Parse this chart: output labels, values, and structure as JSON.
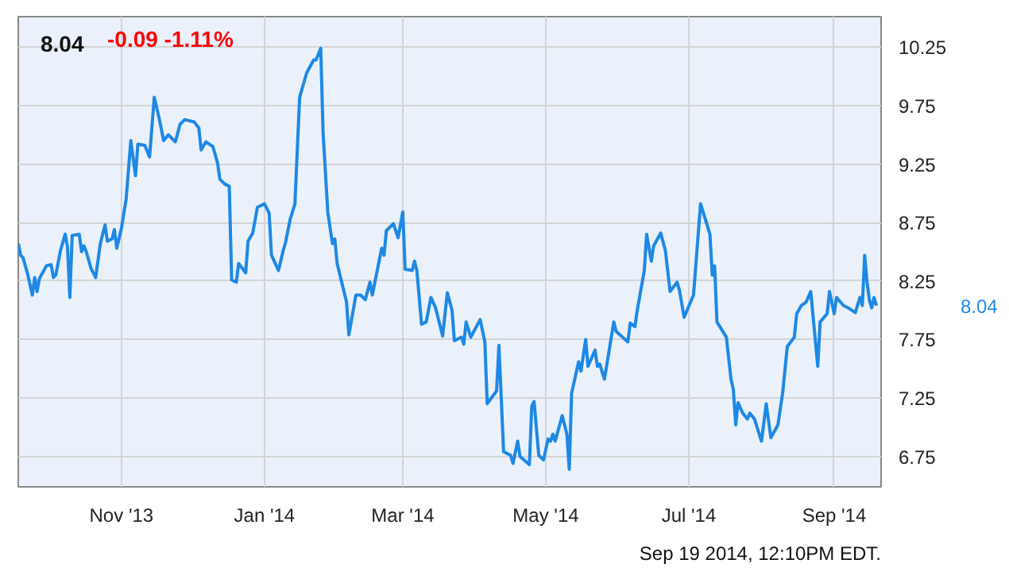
{
  "chart_data": {
    "type": "line",
    "title": "8.04",
    "subtitle": "-0.09  -1.11%",
    "x": [
      "2013-09-18",
      "2013-09-19",
      "2013-09-20",
      "2013-09-22",
      "2013-09-24",
      "2013-09-25",
      "2013-09-26",
      "2013-09-27",
      "2013-09-30",
      "2013-10-02",
      "2013-10-03",
      "2013-10-04",
      "2013-10-06",
      "2013-10-08",
      "2013-10-09",
      "2013-10-10",
      "2013-10-11",
      "2013-10-14",
      "2013-10-15",
      "2013-10-16",
      "2013-10-17",
      "2013-10-19",
      "2013-10-21",
      "2013-10-23",
      "2013-10-25",
      "2013-10-26",
      "2013-10-28",
      "2013-10-29",
      "2013-10-30",
      "2013-11-01",
      "2013-11-03",
      "2013-11-05",
      "2013-11-07",
      "2013-11-08",
      "2013-11-11",
      "2013-11-13",
      "2013-11-15",
      "2013-11-17",
      "2013-11-19",
      "2013-11-21",
      "2013-11-24",
      "2013-11-26",
      "2013-11-28",
      "2013-12-02",
      "2013-12-04",
      "2013-12-05",
      "2013-12-07",
      "2013-12-10",
      "2013-12-12",
      "2013-12-13",
      "2013-12-15",
      "2013-12-17",
      "2013-12-18",
      "2013-12-20",
      "2013-12-21",
      "2013-12-24",
      "2013-12-25",
      "2013-12-27",
      "2013-12-29",
      "2014-01-01",
      "2014-01-03",
      "2014-01-04",
      "2014-01-07",
      "2014-01-09",
      "2014-01-10",
      "2014-01-12",
      "2014-01-14",
      "2014-01-16",
      "2014-01-19",
      "2014-01-22",
      "2014-01-23",
      "2014-01-25",
      "2014-01-26",
      "2014-01-28",
      "2014-01-30",
      "2014-01-31",
      "2014-02-01",
      "2014-02-05",
      "2014-02-06",
      "2014-02-09",
      "2014-02-11",
      "2014-02-13",
      "2014-02-15",
      "2014-02-16",
      "2014-02-20",
      "2014-02-21",
      "2014-02-22",
      "2014-02-25",
      "2014-02-27",
      "2014-03-01",
      "2014-03-02",
      "2014-03-05",
      "2014-03-06",
      "2014-03-07",
      "2014-03-09",
      "2014-03-11",
      "2014-03-13",
      "2014-03-15",
      "2014-03-18",
      "2014-03-20",
      "2014-03-22",
      "2014-03-23",
      "2014-03-26",
      "2014-03-27",
      "2014-03-28",
      "2014-03-30",
      "2014-04-03",
      "2014-04-05",
      "2014-04-06",
      "2014-04-10",
      "2014-04-11",
      "2014-04-13",
      "2014-04-16",
      "2014-04-17",
      "2014-04-19",
      "2014-04-20",
      "2014-04-24",
      "2014-04-25",
      "2014-04-26",
      "2014-04-28",
      "2014-04-30",
      "2014-05-02",
      "2014-05-03",
      "2014-05-04",
      "2014-05-05",
      "2014-05-08",
      "2014-05-10",
      "2014-05-11",
      "2014-05-12",
      "2014-05-15",
      "2014-05-16",
      "2014-05-18",
      "2014-05-19",
      "2014-05-22",
      "2014-05-23",
      "2014-05-24",
      "2014-05-26",
      "2014-05-30",
      "2014-05-31",
      "2014-06-05",
      "2014-06-06",
      "2014-06-08",
      "2014-06-09",
      "2014-06-12",
      "2014-06-13",
      "2014-06-15",
      "2014-06-16",
      "2014-06-19",
      "2014-06-21",
      "2014-06-23",
      "2014-06-26",
      "2014-06-27",
      "2014-06-29",
      "2014-07-03",
      "2014-07-06",
      "2014-07-10",
      "2014-07-11",
      "2014-07-12",
      "2014-07-13",
      "2014-07-17",
      "2014-07-19",
      "2014-07-20",
      "2014-07-21",
      "2014-07-22",
      "2014-07-24",
      "2014-07-26",
      "2014-07-27",
      "2014-07-29",
      "2014-08-01",
      "2014-08-03",
      "2014-08-05",
      "2014-08-08",
      "2014-08-10",
      "2014-08-12",
      "2014-08-15",
      "2014-08-16",
      "2014-08-18",
      "2014-08-20",
      "2014-08-22",
      "2014-08-25",
      "2014-08-26",
      "2014-08-29",
      "2014-08-30",
      "2014-09-01",
      "2014-09-02",
      "2014-09-05",
      "2014-09-07",
      "2014-09-10",
      "2014-09-12",
      "2014-09-13",
      "2014-09-14",
      "2014-09-15",
      "2014-09-16",
      "2014-09-17",
      "2014-09-18",
      "2014-09-19"
    ],
    "series": [
      {
        "color": "#1e88e5",
        "values": [
          8.57,
          8.47,
          8.45,
          8.31,
          8.13,
          8.28,
          8.16,
          8.27,
          8.38,
          8.39,
          8.28,
          8.3,
          8.51,
          8.65,
          8.54,
          8.11,
          8.64,
          8.65,
          8.5,
          8.55,
          8.5,
          8.36,
          8.28,
          8.57,
          8.73,
          8.59,
          8.61,
          8.69,
          8.53,
          8.7,
          8.95,
          9.45,
          9.15,
          9.42,
          9.41,
          9.31,
          9.82,
          9.65,
          9.45,
          9.5,
          9.44,
          9.59,
          9.63,
          9.61,
          9.56,
          9.37,
          9.44,
          9.4,
          9.26,
          9.12,
          9.08,
          9.06,
          8.26,
          8.24,
          8.4,
          8.32,
          8.59,
          8.66,
          8.88,
          8.91,
          8.83,
          8.47,
          8.34,
          8.51,
          8.58,
          8.78,
          8.91,
          9.82,
          10.03,
          10.14,
          10.14,
          10.24,
          9.52,
          8.84,
          8.57,
          8.61,
          8.4,
          8.07,
          7.79,
          8.13,
          8.13,
          8.09,
          8.24,
          8.13,
          8.53,
          8.47,
          8.68,
          8.74,
          8.62,
          8.84,
          8.35,
          8.34,
          8.42,
          8.34,
          7.88,
          7.9,
          8.11,
          8.02,
          7.78,
          8.15,
          8.0,
          7.74,
          7.77,
          7.71,
          7.9,
          7.77,
          7.92,
          7.73,
          7.2,
          7.31,
          7.7,
          6.79,
          6.76,
          6.69,
          6.88,
          6.75,
          6.68,
          7.18,
          7.22,
          6.76,
          6.72,
          6.9,
          6.88,
          6.94,
          6.88,
          7.1,
          6.94,
          6.64,
          7.29,
          7.56,
          7.48,
          7.75,
          7.52,
          7.66,
          7.52,
          7.54,
          7.41,
          7.9,
          7.82,
          7.73,
          7.89,
          7.86,
          8.0,
          8.34,
          8.65,
          8.42,
          8.55,
          8.66,
          8.51,
          8.16,
          8.24,
          8.17,
          7.94,
          8.13,
          8.91,
          8.65,
          8.3,
          8.38,
          7.9,
          7.77,
          7.41,
          7.32,
          7.02,
          7.21,
          7.12,
          7.07,
          7.12,
          7.07,
          6.88,
          7.2,
          6.91,
          7.02,
          7.29,
          7.69,
          7.77,
          7.97,
          8.04,
          8.07,
          8.16,
          7.52,
          7.9,
          7.97,
          8.16,
          7.97,
          8.11,
          8.04,
          8.02,
          7.98,
          8.11,
          8.04,
          8.47,
          8.24,
          8.09,
          8.02,
          8.11,
          8.04
        ]
      }
    ],
    "xlim": [
      "2013-09-18",
      "2014-09-21"
    ],
    "xticks": [
      {
        "value": "2013-11-01",
        "label": "Nov '13"
      },
      {
        "value": "2014-01-01",
        "label": "Jan '14"
      },
      {
        "value": "2014-03-01",
        "label": "Mar '14"
      },
      {
        "value": "2014-05-01",
        "label": "May '14"
      },
      {
        "value": "2014-07-01",
        "label": "Jul '14"
      },
      {
        "value": "2014-09-01",
        "label": "Sep '14"
      }
    ],
    "ylim": [
      6.49,
      10.51
    ],
    "yticks": [
      6.75,
      7.25,
      7.75,
      8.25,
      8.75,
      9.25,
      9.75,
      10.25
    ],
    "grid": true,
    "marker": "none",
    "line_style": "solid",
    "annotations": [
      "8.04",
      "Sep 19 2014, 12:10PM EDT."
    ]
  }
}
